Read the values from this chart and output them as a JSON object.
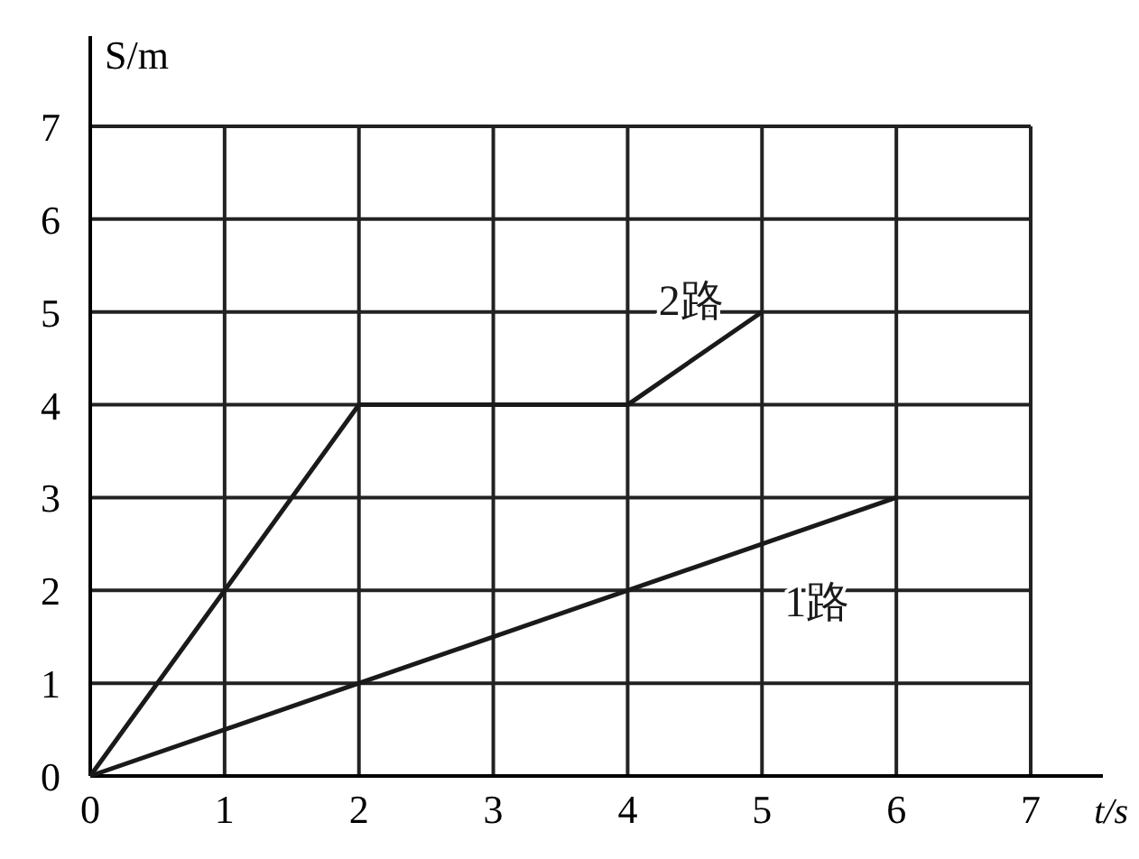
{
  "chart_data": {
    "type": "line",
    "xlabel": "t/s",
    "ylabel": "S/m",
    "xlim": [
      0,
      7
    ],
    "ylim": [
      0,
      7
    ],
    "xticks": [
      0,
      1,
      2,
      3,
      4,
      5,
      6,
      7
    ],
    "yticks": [
      0,
      1,
      2,
      3,
      4,
      5,
      6,
      7
    ],
    "grid": true,
    "marker": "none",
    "line_style": "solid",
    "series": [
      {
        "name": "2路",
        "color": "#1a1a1a",
        "x": [
          0,
          2,
          4,
          5
        ],
        "values": [
          0,
          4,
          4,
          5
        ]
      },
      {
        "name": "1路",
        "color": "#1a1a1a",
        "x": [
          0,
          6
        ],
        "values": [
          0,
          3
        ]
      }
    ]
  }
}
